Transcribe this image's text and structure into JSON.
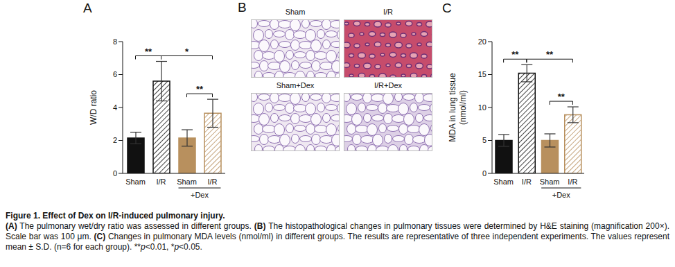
{
  "chart_data": [
    {
      "panel": "A",
      "type": "bar",
      "categories": [
        "Sham",
        "I/R",
        "Sham",
        "I/R"
      ],
      "values": [
        2.15,
        5.6,
        2.15,
        3.65
      ],
      "errors": [
        0.35,
        1.2,
        0.5,
        0.85
      ],
      "colors": [
        "#111111",
        "#111111",
        "#b8905e",
        "#b8905e"
      ],
      "ylabel": "W/D ratio",
      "ylim": [
        0,
        8
      ],
      "yticks": [
        0,
        2,
        4,
        6,
        8
      ],
      "group_labels": [
        {
          "text": "+Dex",
          "categories": [
            2,
            3
          ]
        }
      ],
      "annotations": [
        {
          "text": "**",
          "between": [
            0,
            1
          ]
        },
        {
          "text": "*",
          "between": [
            1,
            3
          ]
        },
        {
          "text": "**",
          "between": [
            2,
            3
          ]
        }
      ]
    },
    {
      "panel": "C",
      "type": "bar",
      "categories": [
        "Sham",
        "I/R",
        "Sham",
        "I/R"
      ],
      "values": [
        5.0,
        15.2,
        5.0,
        8.9
      ],
      "errors": [
        0.9,
        1.3,
        1.0,
        1.2
      ],
      "colors": [
        "#111111",
        "#111111",
        "#b8905e",
        "#b8905e"
      ],
      "ylabel": "MDA in lung tissue (nmol/ml)",
      "ylim": [
        0,
        20
      ],
      "yticks": [
        0,
        5,
        10,
        15,
        20
      ],
      "group_labels": [
        {
          "text": "+Dex",
          "categories": [
            2,
            3
          ]
        }
      ],
      "annotations": [
        {
          "text": "**",
          "between": [
            0,
            1
          ]
        },
        {
          "text": "**",
          "between": [
            1,
            3
          ]
        },
        {
          "text": "**",
          "between": [
            2,
            3
          ]
        }
      ]
    }
  ],
  "images": {
    "panel": "B",
    "labels": [
      "Sham",
      "I/R",
      "Sham+Dex",
      "I/R+Dex"
    ]
  },
  "caption": {
    "title": "Figure 1. Effect of Dex on I/R-induced pulmonary injury.",
    "body": "(A) The pulmonary wet/dry ratio was assessed in different groups. (B) The histopathological changes in pulmonary tissues were determined by H&E staining (magnification 200×). Scale bar was 100 μm. (C) Changes in pulmonary MDA levels (nmol/ml) in different groups. The results are representative of three independent experiments. The values represent mean ± S.D. (n=6 for each group). **p<0.01, *p<0.05."
  }
}
